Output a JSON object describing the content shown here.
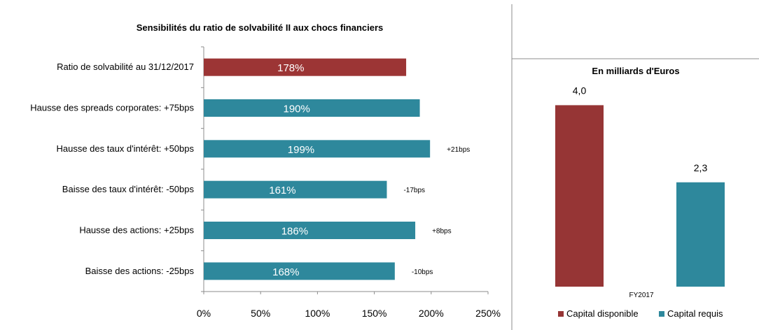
{
  "chart_data": [
    {
      "type": "bar",
      "orientation": "horizontal",
      "title": "Sensibilités du ratio de solvabilité II aux chocs financiers",
      "categories": [
        "Ratio de solvabilité au 31/12/2017",
        "Hausse des spreads corporates: +75bps",
        "Hausse des taux d'intérêt: +50bps",
        "Baisse des taux d'intérêt: -50bps",
        "Hausse des actions: +25bps",
        "Baisse des actions: -25bps"
      ],
      "values": [
        178,
        190,
        199,
        161,
        186,
        168
      ],
      "value_labels": [
        "178%",
        "190%",
        "199%",
        "161%",
        "186%",
        "168%"
      ],
      "annotations": [
        "",
        "",
        "+21bps",
        "-17bps",
        "+8bps",
        "-10bps"
      ],
      "bar_colors": [
        "#9c3535",
        "#2e889c",
        "#2e889c",
        "#2e889c",
        "#2e889c",
        "#2e889c"
      ],
      "xlim": [
        0,
        250
      ],
      "xticks": [
        "0%",
        "50%",
        "100%",
        "150%",
        "200%",
        "250%"
      ],
      "grid": false
    },
    {
      "type": "bar",
      "title": "En milliards d'Euros",
      "categories": [
        "FY2017"
      ],
      "series": [
        {
          "name": "Capital disponible",
          "values": [
            4.0
          ],
          "label": "4,0",
          "color": "#963535"
        },
        {
          "name": "Capital requis",
          "values": [
            2.3
          ],
          "label": "2,3",
          "color": "#2e889c"
        }
      ],
      "ylim": [
        0,
        4.5
      ],
      "legend": "bottom",
      "grid": false
    }
  ]
}
